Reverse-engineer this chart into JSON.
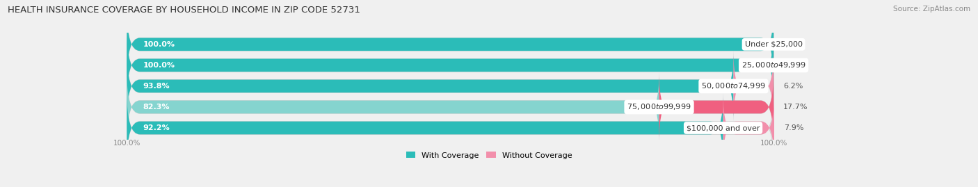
{
  "title": "HEALTH INSURANCE COVERAGE BY HOUSEHOLD INCOME IN ZIP CODE 52731",
  "source": "Source: ZipAtlas.com",
  "categories": [
    "Under $25,000",
    "$25,000 to $49,999",
    "$50,000 to $74,999",
    "$75,000 to $99,999",
    "$100,000 and over"
  ],
  "with_coverage": [
    100.0,
    100.0,
    93.8,
    82.3,
    92.2
  ],
  "without_coverage": [
    0.0,
    0.0,
    6.2,
    17.7,
    7.9
  ],
  "color_with": [
    "#2BBCB8",
    "#2BBCB8",
    "#2BBCB8",
    "#85D4CF",
    "#2BBCB8"
  ],
  "color_without": [
    "#F28FAB",
    "#F28FAB",
    "#F28FAB",
    "#F06080",
    "#F28FAB"
  ],
  "background_color": "#f0f0f0",
  "bar_background": "#e0e0e0",
  "title_fontsize": 9.5,
  "label_fontsize": 8,
  "tick_fontsize": 7.5,
  "bar_height": 0.62,
  "total_width": 100.0,
  "figsize": [
    14.06,
    2.69
  ],
  "xlim_left": -18,
  "xlim_right": 130
}
